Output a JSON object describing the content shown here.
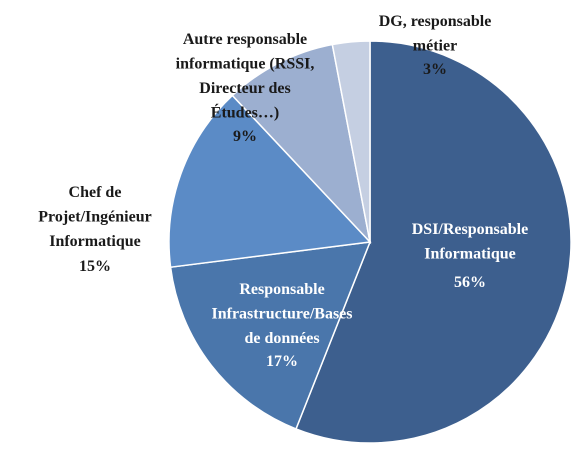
{
  "chart_data": {
    "type": "pie",
    "categories": [
      "DSI/Responsable\nInformatique",
      "Responsable\nInfrastructure/Bases\nde données",
      "Chef de\nProjet/Ingénieur\nInformatique",
      "Autre responsable\ninformatique (RSSI,\nDirecteur des\nÉtudes…)",
      "DG, responsable\nmétier"
    ],
    "values": [
      56,
      17,
      15,
      9,
      3
    ],
    "value_labels": [
      "56%",
      "17%",
      "15%",
      "9%",
      "3%"
    ],
    "colors": [
      "#3d5f8e",
      "#4a76ab",
      "#5b8bc6",
      "#9cafd0",
      "#c5cfe2"
    ]
  }
}
